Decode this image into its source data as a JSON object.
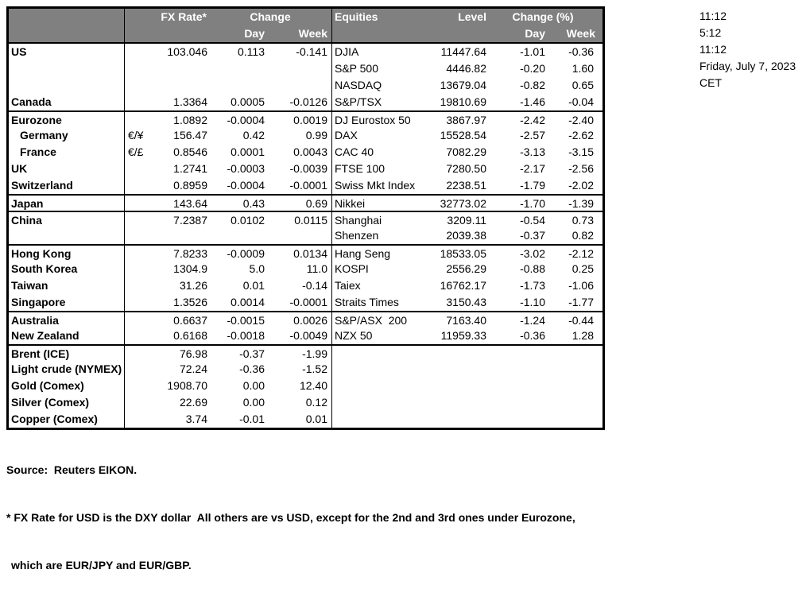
{
  "header": {
    "fx_rate": "FX Rate*",
    "change": "Change",
    "day": "Day",
    "week": "Week",
    "equities": "Equities",
    "level": "Level",
    "change_pct": "Change (%)",
    "day2": "Day",
    "week2": "Week"
  },
  "timestamps": [
    "11:12",
    "5:12",
    "11:12",
    "Friday, July 7, 2023",
    "CET"
  ],
  "rows": [
    {
      "divider": false,
      "fx": {
        "label": "US",
        "indent": false,
        "pair": "",
        "rate": "103.046",
        "day": "0.113",
        "week": "-0.141"
      },
      "eq": {
        "name": "DJIA",
        "level": "11447.64",
        "day": "-1.01",
        "week": "-0.36"
      }
    },
    {
      "divider": false,
      "fx": {
        "label": "",
        "indent": false,
        "pair": "",
        "rate": "",
        "day": "",
        "week": ""
      },
      "eq": {
        "name": "S&P 500",
        "level": "4446.82",
        "day": "-0.20",
        "week": "1.60"
      }
    },
    {
      "divider": false,
      "fx": {
        "label": "",
        "indent": false,
        "pair": "",
        "rate": "",
        "day": "",
        "week": ""
      },
      "eq": {
        "name": "NASDAQ",
        "level": "13679.04",
        "day": "-0.82",
        "week": "0.65"
      }
    },
    {
      "divider": false,
      "fx": {
        "label": "Canada",
        "indent": false,
        "pair": "",
        "rate": "1.3364",
        "day": "0.0005",
        "week": "-0.0126"
      },
      "eq": {
        "name": "S&P/TSX",
        "level": "19810.69",
        "day": "-1.46",
        "week": "-0.04"
      }
    },
    {
      "divider": true,
      "fx": {
        "label": "Eurozone",
        "indent": false,
        "pair": "",
        "rate": "1.0892",
        "day": "-0.0004",
        "week": "0.0019"
      },
      "eq": {
        "name": "DJ Eurostox 50",
        "level": "3867.97",
        "day": "-2.42",
        "week": "-2.40"
      }
    },
    {
      "divider": false,
      "fx": {
        "label": "Germany",
        "indent": true,
        "pair": "€/¥",
        "rate": "156.47",
        "day": "0.42",
        "week": "0.99"
      },
      "eq": {
        "name": "DAX",
        "level": "15528.54",
        "day": "-2.57",
        "week": "-2.62"
      }
    },
    {
      "divider": false,
      "fx": {
        "label": "France",
        "indent": true,
        "pair": "€/£",
        "rate": "0.8546",
        "day": "0.0001",
        "week": "0.0043"
      },
      "eq": {
        "name": "CAC 40",
        "level": "7082.29",
        "day": "-3.13",
        "week": "-3.15"
      }
    },
    {
      "divider": false,
      "fx": {
        "label": "UK",
        "indent": false,
        "pair": "",
        "rate": "1.2741",
        "day": "-0.0003",
        "week": "-0.0039"
      },
      "eq": {
        "name": "FTSE 100",
        "level": "7280.50",
        "day": "-2.17",
        "week": "-2.56"
      }
    },
    {
      "divider": false,
      "fx": {
        "label": "Switzerland",
        "indent": false,
        "pair": "",
        "rate": "0.8959",
        "day": "-0.0004",
        "week": "-0.0001"
      },
      "eq": {
        "name": "Swiss Mkt Index",
        "level": "2238.51",
        "day": "-1.79",
        "week": "-2.02"
      }
    },
    {
      "divider": true,
      "fx": {
        "label": "Japan",
        "indent": false,
        "pair": "",
        "rate": "143.64",
        "day": "0.43",
        "week": "0.69"
      },
      "eq": {
        "name": "Nikkei",
        "level": "32773.02",
        "day": "-1.70",
        "week": "-1.39"
      }
    },
    {
      "divider": true,
      "fx": {
        "label": "China",
        "indent": false,
        "pair": "",
        "rate": "7.2387",
        "day": "0.0102",
        "week": "0.0115"
      },
      "eq": {
        "name": "Shanghai",
        "level": "3209.11",
        "day": "-0.54",
        "week": "0.73"
      }
    },
    {
      "divider": false,
      "fx": {
        "label": "",
        "indent": false,
        "pair": "",
        "rate": "",
        "day": "",
        "week": ""
      },
      "eq": {
        "name": "Shenzen",
        "level": "2039.38",
        "day": "-0.37",
        "week": "0.82"
      }
    },
    {
      "divider": true,
      "fx": {
        "label": "Hong Kong",
        "indent": false,
        "pair": "",
        "rate": "7.8233",
        "day": "-0.0009",
        "week": "0.0134"
      },
      "eq": {
        "name": "Hang Seng",
        "level": "18533.05",
        "day": "-3.02",
        "week": "-2.12"
      }
    },
    {
      "divider": false,
      "fx": {
        "label": "South Korea",
        "indent": false,
        "pair": "",
        "rate": "1304.9",
        "day": "5.0",
        "week": "11.0"
      },
      "eq": {
        "name": "KOSPI",
        "level": "2556.29",
        "day": "-0.88",
        "week": "0.25"
      }
    },
    {
      "divider": false,
      "fx": {
        "label": "Taiwan",
        "indent": false,
        "pair": "",
        "rate": "31.26",
        "day": "0.01",
        "week": "-0.14"
      },
      "eq": {
        "name": "Taiex",
        "level": "16762.17",
        "day": "-1.73",
        "week": "-1.06"
      }
    },
    {
      "divider": false,
      "fx": {
        "label": "Singapore",
        "indent": false,
        "pair": "",
        "rate": "1.3526",
        "day": "0.0014",
        "week": "-0.0001"
      },
      "eq": {
        "name": "Straits Times",
        "level": "3150.43",
        "day": "-1.10",
        "week": "-1.77"
      }
    },
    {
      "divider": true,
      "fx": {
        "label": "Australia",
        "indent": false,
        "pair": "",
        "rate": "0.6637",
        "day": "-0.0015",
        "week": "0.0026"
      },
      "eq": {
        "name": "S&P/ASX  200",
        "level": "7163.40",
        "day": "-1.24",
        "week": "-0.44"
      }
    },
    {
      "divider": false,
      "fx": {
        "label": "New Zealand",
        "indent": false,
        "pair": "",
        "rate": "0.6168",
        "day": "-0.0018",
        "week": "-0.0049"
      },
      "eq": {
        "name": "NZX 50",
        "level": "11959.33",
        "day": "-0.36",
        "week": "1.28"
      }
    },
    {
      "divider": true,
      "fx": {
        "label": "Brent (ICE)",
        "indent": false,
        "pair": "",
        "rate": "76.98",
        "day": "-0.37",
        "week": "-1.99"
      },
      "eq": {
        "name": "",
        "level": "",
        "day": "",
        "week": ""
      }
    },
    {
      "divider": false,
      "fx": {
        "label": "Light crude (NYMEX)",
        "indent": false,
        "pair": "",
        "rate": "72.24",
        "day": "-0.36",
        "week": "-1.52"
      },
      "eq": {
        "name": "",
        "level": "",
        "day": "",
        "week": ""
      }
    },
    {
      "divider": false,
      "fx": {
        "label": "Gold (Comex)",
        "indent": false,
        "pair": "",
        "rate": "1908.70",
        "day": "0.00",
        "week": "12.40"
      },
      "eq": {
        "name": "",
        "level": "",
        "day": "",
        "week": ""
      }
    },
    {
      "divider": false,
      "fx": {
        "label": "Silver (Comex)",
        "indent": false,
        "pair": "",
        "rate": "22.69",
        "day": "0.00",
        "week": "0.12"
      },
      "eq": {
        "name": "",
        "level": "",
        "day": "",
        "week": ""
      }
    },
    {
      "divider": false,
      "fx": {
        "label": "Copper (Comex)",
        "indent": false,
        "pair": "",
        "rate": "3.74",
        "day": "-0.01",
        "week": "0.01"
      },
      "eq": {
        "name": "",
        "level": "",
        "day": "",
        "week": ""
      }
    }
  ],
  "footer": {
    "source": "Source:  Reuters EIKON.",
    "note1": "* FX Rate for USD is the DXY dollar  All others are vs USD, except for the 2nd and 3rd ones under Eurozone,",
    "note2": "which are EUR/JPY and EUR/GBP."
  },
  "colors": {
    "header_bg": "#808080",
    "header_text": "#ffffff",
    "border": "#000000"
  }
}
